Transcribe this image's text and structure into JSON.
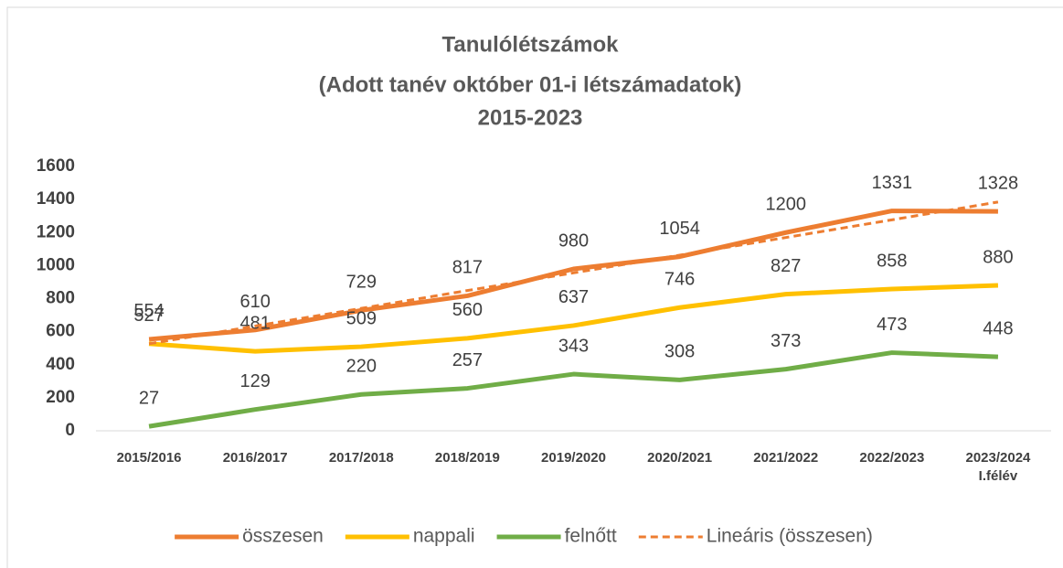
{
  "chart_data": {
    "type": "line",
    "title": [
      "Tanulólétszámok",
      "(Adott tanév október 01-i létszámadatok)",
      "2015-2023"
    ],
    "categories": [
      "2015/2016",
      "2016/2017",
      "2017/2018",
      "2018/2019",
      "2019/2020",
      "2020/2021",
      "2021/2022",
      "2022/2023",
      "2023/2024\nI.félév"
    ],
    "series": [
      {
        "name": "összesen",
        "color": "#ED7D31",
        "values": [
          554,
          610,
          729,
          817,
          980,
          1054,
          1200,
          1331,
          1328
        ],
        "data_labels": true
      },
      {
        "name": "nappali",
        "color": "#FFC000",
        "values": [
          527,
          481,
          509,
          560,
          637,
          746,
          827,
          858,
          880
        ],
        "data_labels": true
      },
      {
        "name": "felnőtt",
        "color": "#70AD47",
        "values": [
          27,
          129,
          220,
          257,
          343,
          308,
          373,
          473,
          448
        ],
        "data_labels": true
      },
      {
        "name": "Lineáris (összesen)",
        "color": "#ED7D31",
        "style": "dashed",
        "values": [
          527,
          634,
          741,
          849,
          956,
          1063,
          1170,
          1277,
          1385
        ],
        "data_labels": false
      }
    ],
    "ylim": [
      0,
      1600
    ],
    "yticks": [
      0,
      200,
      400,
      600,
      800,
      1000,
      1200,
      1400,
      1600
    ],
    "grid": false,
    "legend": "bottom"
  }
}
